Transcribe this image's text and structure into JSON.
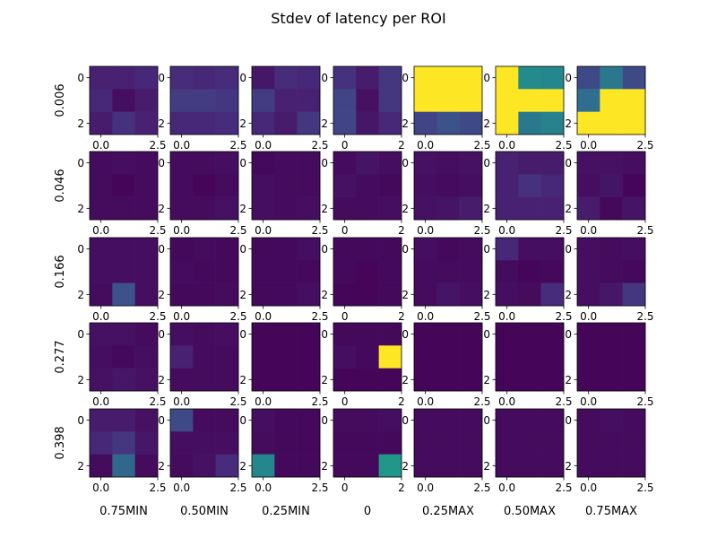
{
  "chart_data": {
    "type": "heatmap",
    "title": "Stdev of latency per ROI",
    "row_labels": [
      "0.006",
      "0.046",
      "0.166",
      "0.277",
      "0.398"
    ],
    "col_labels": [
      "0.75MIN",
      "0.50MIN",
      "0.25MIN",
      "0",
      "0.25MAX",
      "0.50MAX",
      "0.75MAX"
    ],
    "y_ticks": [
      "0",
      "2"
    ],
    "x_ticks": [
      "0.0",
      "2.5"
    ],
    "x_ticks_col4": [
      "0",
      "2"
    ],
    "x_range": [
      -0.5,
      2.5
    ],
    "y_range": [
      2.5,
      -0.5
    ],
    "colormap": "viridis",
    "value_range": [
      0,
      1
    ],
    "grid": false,
    "cells": [
      [
        [
          [
            0.12,
            0.12,
            0.14
          ],
          [
            0.14,
            0.05,
            0.1
          ],
          [
            0.1,
            0.18,
            0.12
          ]
        ],
        [
          [
            0.16,
            0.14,
            0.16
          ],
          [
            0.22,
            0.22,
            0.2
          ],
          [
            0.14,
            0.14,
            0.16
          ]
        ],
        [
          [
            0.08,
            0.16,
            0.14
          ],
          [
            0.22,
            0.12,
            0.12
          ],
          [
            0.14,
            0.1,
            0.2
          ]
        ],
        [
          [
            0.18,
            0.1,
            0.2
          ],
          [
            0.25,
            0.06,
            0.2
          ],
          [
            0.25,
            0.08,
            0.14
          ]
        ],
        [
          [
            1.0,
            1.0,
            1.0
          ],
          [
            1.0,
            1.0,
            1.0
          ],
          [
            0.25,
            0.32,
            0.28
          ]
        ],
        [
          [
            1.0,
            0.6,
            0.58
          ],
          [
            1.0,
            1.0,
            1.0
          ],
          [
            1.0,
            0.5,
            0.55
          ]
        ],
        [
          [
            0.28,
            0.5,
            0.28
          ],
          [
            0.45,
            1.0,
            1.0
          ],
          [
            1.0,
            1.0,
            1.0
          ]
        ]
      ],
      [
        [
          [
            0.04,
            0.05,
            0.04
          ],
          [
            0.04,
            0.02,
            0.04
          ],
          [
            0.04,
            0.04,
            0.04
          ]
        ],
        [
          [
            0.04,
            0.04,
            0.05
          ],
          [
            0.04,
            0.02,
            0.04
          ],
          [
            0.04,
            0.04,
            0.06
          ]
        ],
        [
          [
            0.03,
            0.04,
            0.04
          ],
          [
            0.05,
            0.04,
            0.04
          ],
          [
            0.05,
            0.04,
            0.05
          ]
        ],
        [
          [
            0.04,
            0.07,
            0.05
          ],
          [
            0.06,
            0.04,
            0.03
          ],
          [
            0.04,
            0.04,
            0.05
          ]
        ],
        [
          [
            0.06,
            0.05,
            0.06
          ],
          [
            0.05,
            0.04,
            0.05
          ],
          [
            0.06,
            0.07,
            0.1
          ]
        ],
        [
          [
            0.12,
            0.1,
            0.1
          ],
          [
            0.12,
            0.18,
            0.14
          ],
          [
            0.12,
            0.12,
            0.12
          ]
        ],
        [
          [
            0.06,
            0.06,
            0.05
          ],
          [
            0.05,
            0.07,
            0.02
          ],
          [
            0.1,
            0.03,
            0.07
          ]
        ]
      ],
      [
        [
          [
            0.05,
            0.05,
            0.05
          ],
          [
            0.05,
            0.05,
            0.05
          ],
          [
            0.04,
            0.32,
            0.05
          ]
        ],
        [
          [
            0.03,
            0.04,
            0.03
          ],
          [
            0.04,
            0.03,
            0.03
          ],
          [
            0.03,
            0.03,
            0.04
          ]
        ],
        [
          [
            0.03,
            0.03,
            0.05
          ],
          [
            0.03,
            0.03,
            0.03
          ],
          [
            0.03,
            0.03,
            0.05
          ]
        ],
        [
          [
            0.03,
            0.03,
            0.03
          ],
          [
            0.03,
            0.02,
            0.03
          ],
          [
            0.02,
            0.02,
            0.03
          ]
        ],
        [
          [
            0.05,
            0.03,
            0.04
          ],
          [
            0.04,
            0.04,
            0.04
          ],
          [
            0.04,
            0.07,
            0.05
          ]
        ],
        [
          [
            0.14,
            0.05,
            0.05
          ],
          [
            0.04,
            0.02,
            0.03
          ],
          [
            0.05,
            0.04,
            0.16
          ]
        ],
        [
          [
            0.05,
            0.04,
            0.05
          ],
          [
            0.05,
            0.04,
            0.03
          ],
          [
            0.05,
            0.08,
            0.2
          ]
        ]
      ],
      [
        [
          [
            0.06,
            0.06,
            0.04
          ],
          [
            0.05,
            0.03,
            0.05
          ],
          [
            0.06,
            0.08,
            0.06
          ]
        ],
        [
          [
            0.05,
            0.04,
            0.05
          ],
          [
            0.12,
            0.04,
            0.04
          ],
          [
            0.04,
            0.04,
            0.04
          ]
        ],
        [
          [
            0.02,
            0.02,
            0.02
          ],
          [
            0.02,
            0.02,
            0.02
          ],
          [
            0.02,
            0.02,
            0.02
          ]
        ],
        [
          [
            0.03,
            0.03,
            0.03
          ],
          [
            0.05,
            0.03,
            1.0
          ],
          [
            0.02,
            0.02,
            0.02
          ]
        ],
        [
          [
            0.02,
            0.02,
            0.02
          ],
          [
            0.02,
            0.02,
            0.02
          ],
          [
            0.02,
            0.02,
            0.02
          ]
        ],
        [
          [
            0.02,
            0.02,
            0.02
          ],
          [
            0.02,
            0.02,
            0.02
          ],
          [
            0.02,
            0.02,
            0.02
          ]
        ],
        [
          [
            0.02,
            0.02,
            0.02
          ],
          [
            0.02,
            0.02,
            0.02
          ],
          [
            0.02,
            0.02,
            0.02
          ]
        ]
      ],
      [
        [
          [
            0.1,
            0.1,
            0.06
          ],
          [
            0.14,
            0.2,
            0.08
          ],
          [
            0.04,
            0.42,
            0.04
          ]
        ],
        [
          [
            0.28,
            0.04,
            0.04
          ],
          [
            0.05,
            0.05,
            0.05
          ],
          [
            0.04,
            0.06,
            0.16
          ]
        ],
        [
          [
            0.05,
            0.03,
            0.03
          ],
          [
            0.04,
            0.03,
            0.03
          ],
          [
            0.58,
            0.03,
            0.03
          ]
        ],
        [
          [
            0.04,
            0.04,
            0.05
          ],
          [
            0.03,
            0.03,
            0.03
          ],
          [
            0.03,
            0.03,
            0.66
          ]
        ],
        [
          [
            0.04,
            0.04,
            0.04
          ],
          [
            0.04,
            0.04,
            0.04
          ],
          [
            0.04,
            0.04,
            0.04
          ]
        ],
        [
          [
            0.04,
            0.04,
            0.04
          ],
          [
            0.04,
            0.04,
            0.04
          ],
          [
            0.04,
            0.04,
            0.04
          ]
        ],
        [
          [
            0.04,
            0.05,
            0.04
          ],
          [
            0.04,
            0.04,
            0.04
          ],
          [
            0.04,
            0.04,
            0.04
          ]
        ]
      ]
    ]
  }
}
